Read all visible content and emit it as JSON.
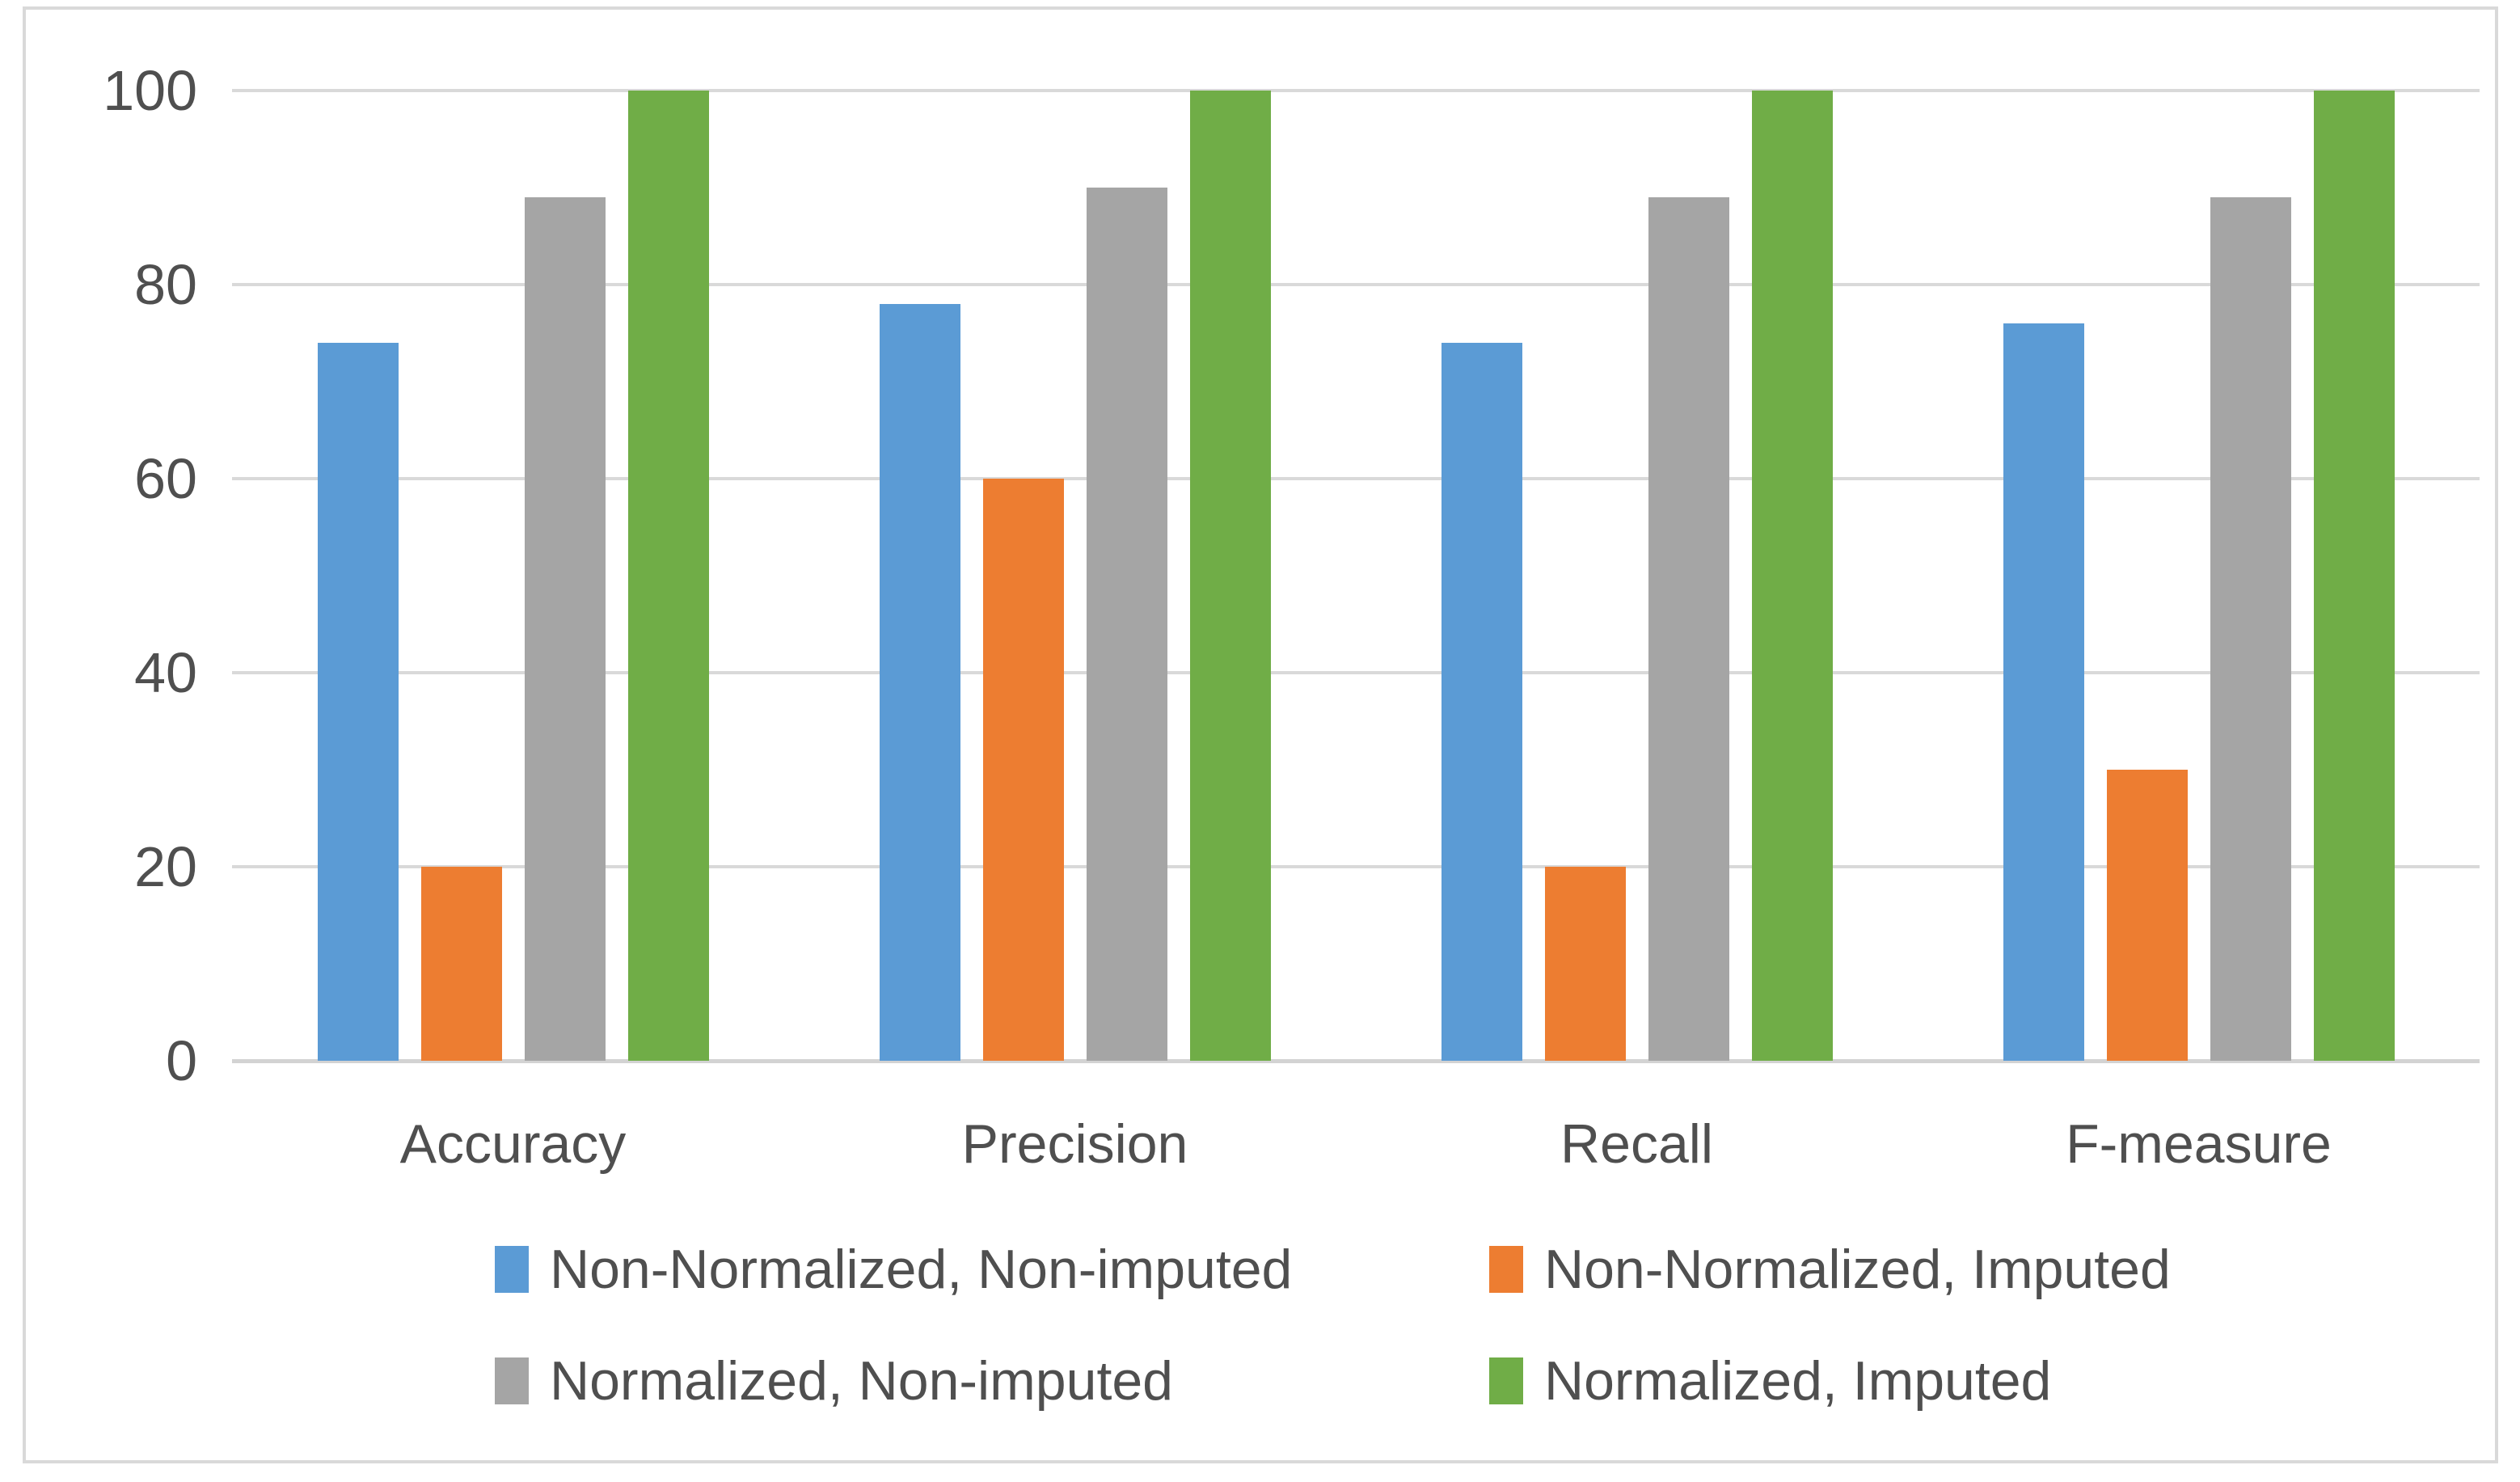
{
  "chart_data": {
    "type": "bar",
    "title": "",
    "categories": [
      "Accuracy",
      "Precision",
      "Recall",
      "F-measure"
    ],
    "series": [
      {
        "name": "Non-Normalized, Non-imputed",
        "color": "#5b9bd5",
        "values": [
          74,
          78,
          74,
          76
        ]
      },
      {
        "name": "Non-Normalized, Imputed",
        "color": "#ed7d31",
        "values": [
          20,
          60,
          20,
          30
        ]
      },
      {
        "name": "Normalized, Non-imputed",
        "color": "#a5a5a5",
        "values": [
          89,
          90,
          89,
          89
        ]
      },
      {
        "name": "Normalized, Imputed",
        "color": "#70ad47",
        "values": [
          100,
          100,
          100,
          100
        ]
      }
    ],
    "y_axis": {
      "min": 0,
      "max": 100,
      "ticks": [
        0,
        20,
        40,
        60,
        80,
        100
      ]
    },
    "grid": true,
    "legend_position": "bottom-2x2",
    "style": {
      "gridline_color": "#d9d9d9",
      "axis_line_color": "#d3d3d3",
      "text_color": "#4f4f4f",
      "frame_border_color": "#d9d9d9",
      "background": "#ffffff"
    }
  }
}
